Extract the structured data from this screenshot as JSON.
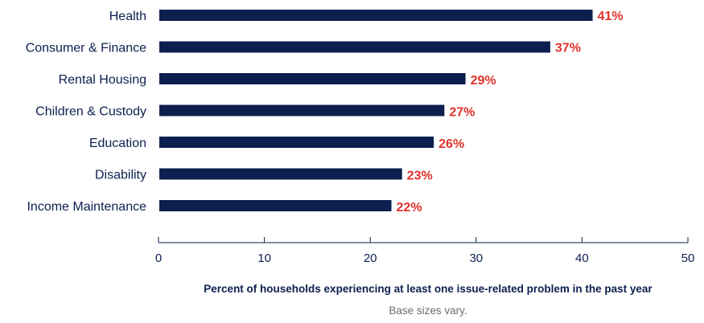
{
  "chart_data": {
    "type": "bar",
    "orientation": "horizontal",
    "categories": [
      "Health",
      "Consumer & Finance",
      "Rental Housing",
      "Children & Custody",
      "Education",
      "Disability",
      "Income Maintenance"
    ],
    "values": [
      41,
      37,
      29,
      27,
      26,
      23,
      22
    ],
    "value_labels": [
      "41%",
      "37%",
      "29%",
      "27%",
      "26%",
      "23%",
      "22%"
    ],
    "xlabel": "Percent of households experiencing at least one issue-related problem in the past year",
    "note": "Base sizes vary.",
    "xlim": [
      0,
      50
    ],
    "xticks": [
      0,
      10,
      20,
      30,
      40,
      50
    ],
    "grid": false,
    "legend": "none",
    "colors": {
      "bar": "#0d1f4f",
      "value_label": "#e0312a",
      "text": "#0d1f4f",
      "note": "#6b6b6b"
    }
  }
}
